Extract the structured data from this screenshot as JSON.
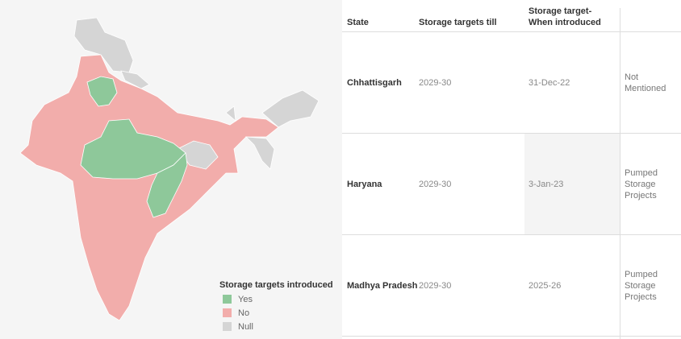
{
  "map": {
    "colors": {
      "yes": "#8ec89a",
      "no": "#f2adab",
      "null": "#d5d5d5"
    },
    "legend": {
      "title": "Storage targets introduced",
      "items": [
        {
          "label": "Yes",
          "color": "#8ec89a"
        },
        {
          "label": "No",
          "color": "#f2adab"
        },
        {
          "label": "Null",
          "color": "#d5d5d5"
        }
      ]
    }
  },
  "table": {
    "headers": [
      "State",
      "Storage targets till",
      "Storage target- When introduced",
      ""
    ],
    "rows": [
      {
        "state": "Chhattisgarh",
        "till": "2029-30",
        "introduced": "31-Dec-22",
        "note": "Not Mentioned"
      },
      {
        "state": "Haryana",
        "till": "2029-30",
        "introduced": "3-Jan-23",
        "note": "Pumped Storage Projects"
      },
      {
        "state": "Madhya Pradesh",
        "till": "2029-30",
        "introduced": "2025-26",
        "note": "Pumped Storage Projects"
      }
    ]
  }
}
